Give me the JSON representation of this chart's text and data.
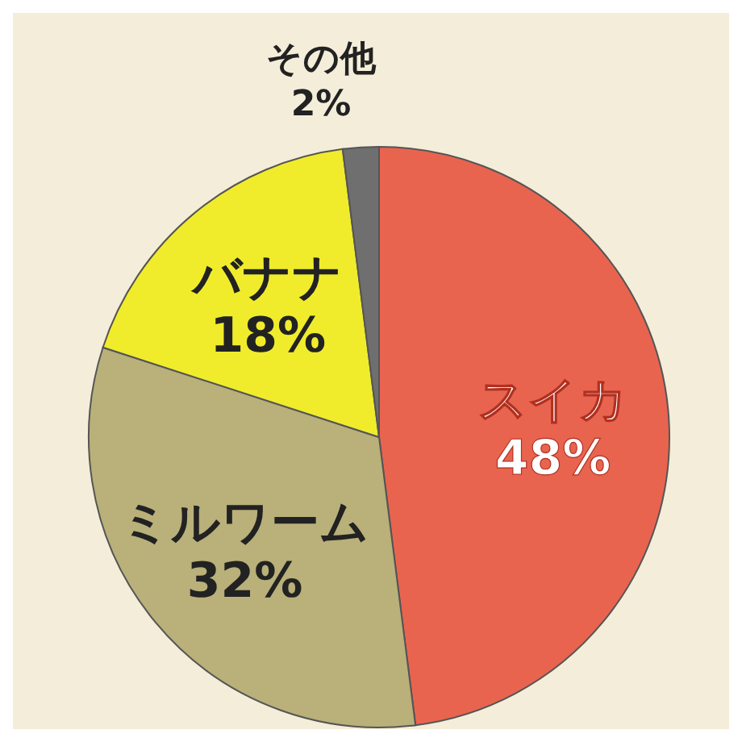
{
  "chart_data": {
    "type": "pie",
    "categories": [
      "スイカ",
      "ミルワーム",
      "バナナ",
      "その他"
    ],
    "values": [
      48,
      32,
      18,
      2
    ],
    "colors": [
      "#e9644f",
      "#b9b07a",
      "#f0ec2c",
      "#6f6f6f"
    ],
    "value_labels": [
      "48%",
      "32%",
      "18%",
      "2%"
    ],
    "legend": false
  }
}
